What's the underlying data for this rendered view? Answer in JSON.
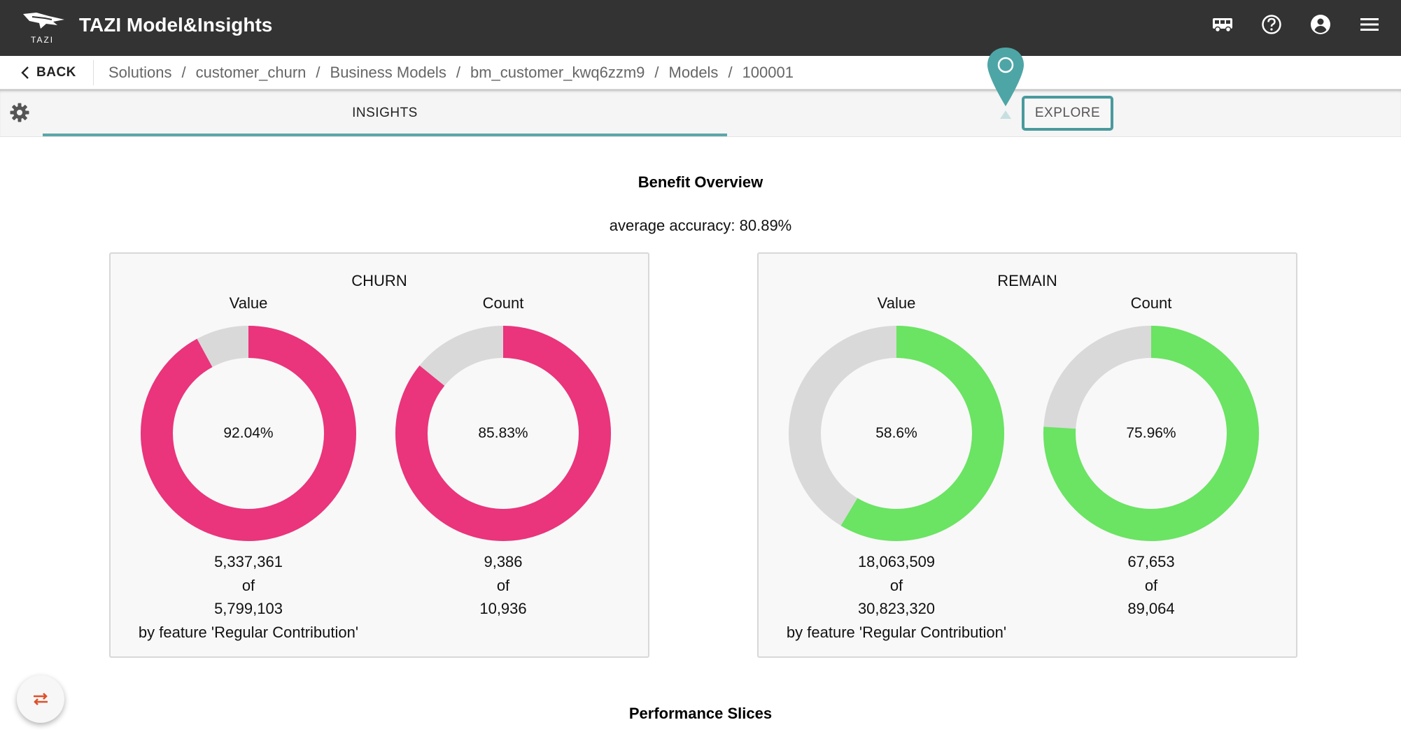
{
  "app": {
    "title": "TAZI Model&Insights",
    "logo_text": "TAZI"
  },
  "header_icons": [
    "bus-icon",
    "help-icon",
    "account-icon",
    "menu-icon"
  ],
  "breadcrumb": {
    "back_label": "BACK",
    "items": [
      "Solutions",
      "customer_churn",
      "Business Models",
      "bm_customer_kwq6zzm9",
      "Models",
      "100001"
    ]
  },
  "tabs": {
    "insights_label": "INSIGHTS",
    "explore_label": "EXPLORE"
  },
  "overview": {
    "title": "Benefit Overview",
    "accuracy": "average accuracy: 80.89%"
  },
  "colors": {
    "churn": "#ea347c",
    "remain": "#6ae462",
    "track": "#d9d9d9",
    "accent": "#4a9a9d"
  },
  "chart_data": [
    {
      "type": "pie",
      "group": "CHURN",
      "title": "Value",
      "value_percent": 92.04,
      "label": "92.04%",
      "numerator": "5,337,361",
      "of": "of",
      "denominator": "5,799,103",
      "note": "by feature 'Regular Contribution'"
    },
    {
      "type": "pie",
      "group": "CHURN",
      "title": "Count",
      "value_percent": 85.83,
      "label": "85.83%",
      "numerator": "9,386",
      "of": "of",
      "denominator": "10,936",
      "note": ""
    },
    {
      "type": "pie",
      "group": "REMAIN",
      "title": "Value",
      "value_percent": 58.6,
      "label": "58.6%",
      "numerator": "18,063,509",
      "of": "of",
      "denominator": "30,823,320",
      "note": "by feature 'Regular Contribution'"
    },
    {
      "type": "pie",
      "group": "REMAIN",
      "title": "Count",
      "value_percent": 75.96,
      "label": "75.96%",
      "numerator": "67,653",
      "of": "of",
      "denominator": "89,064",
      "note": ""
    }
  ],
  "cards": {
    "churn_title": "CHURN",
    "remain_title": "REMAIN"
  },
  "next_section": {
    "title": "Performance Slices"
  }
}
